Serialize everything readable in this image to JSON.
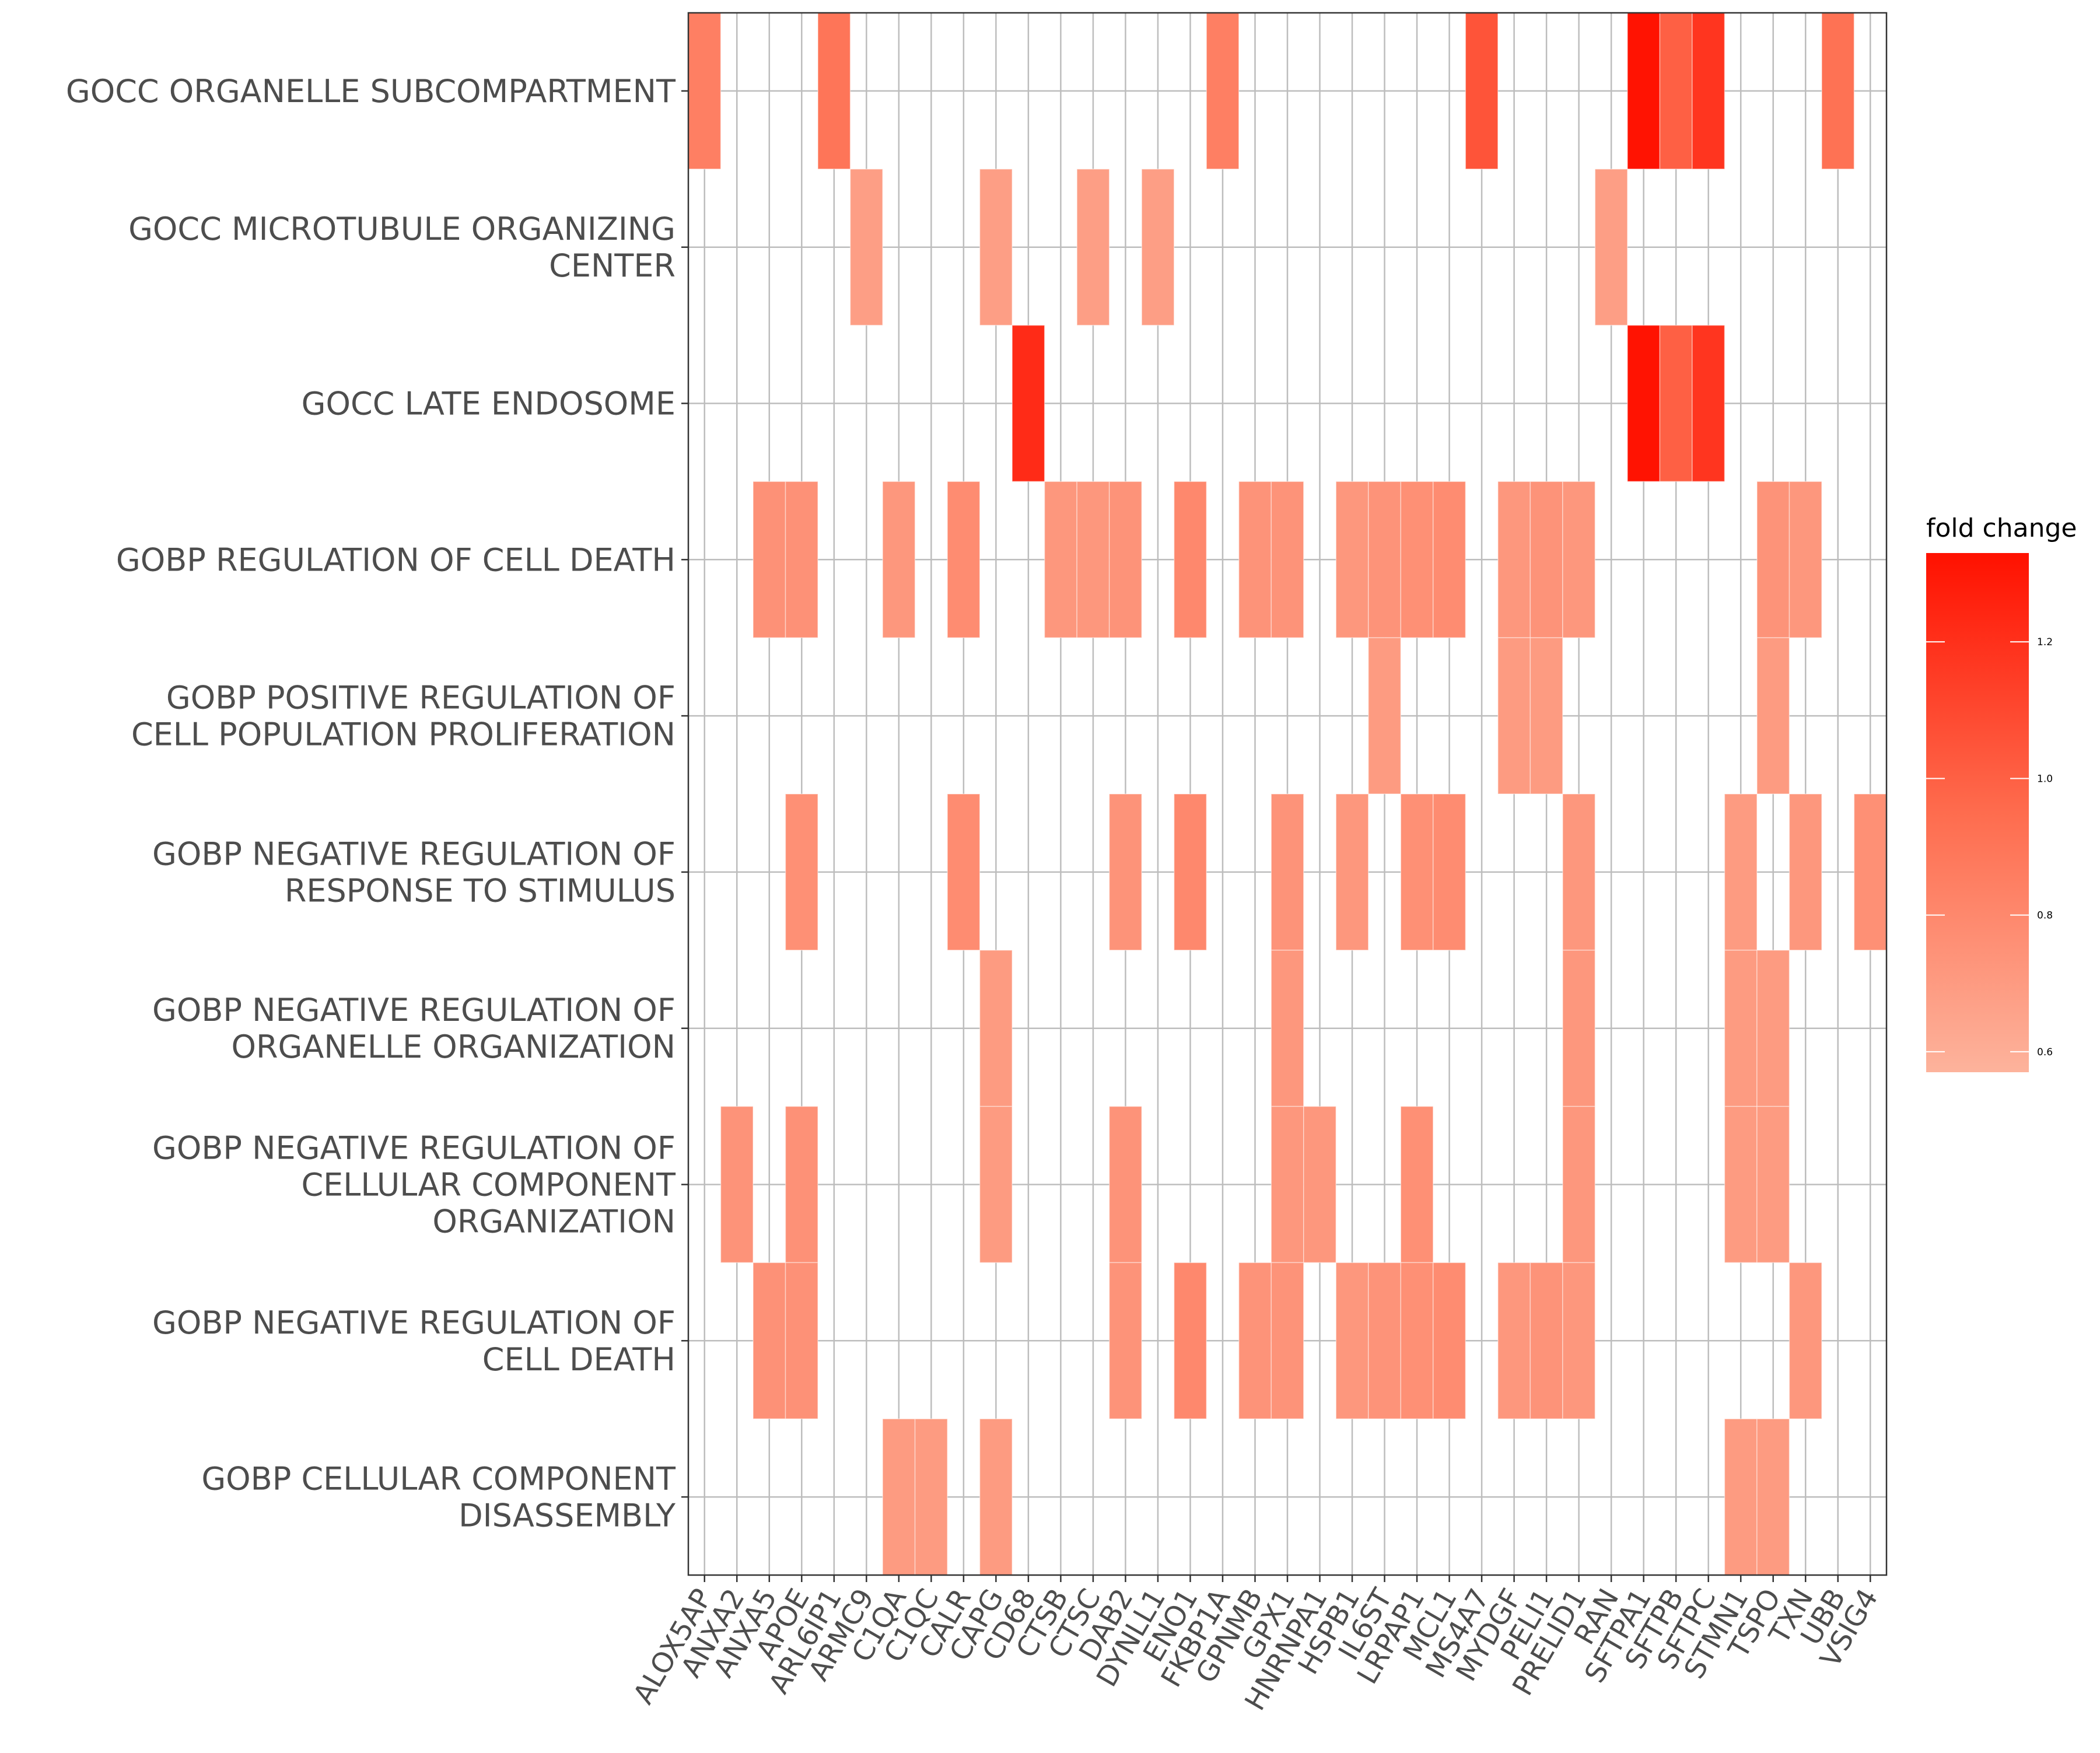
{
  "chart_data": {
    "type": "heatmap",
    "legend": {
      "title": "fold change",
      "ticks": [
        0.6,
        0.8,
        1.0,
        1.2
      ],
      "tick_labels": [
        "0.6",
        "0.8",
        "1.0",
        "1.2"
      ],
      "range": [
        0.57,
        1.33
      ],
      "position": "right"
    },
    "color_scale": {
      "low": "#fdb39c",
      "mid": "#fe6c4e",
      "high": "#ff1100"
    },
    "grid": true,
    "columns": [
      "ALOX5AP",
      "ANXA2",
      "ANXA5",
      "APOE",
      "ARL6IP1",
      "ARMC9",
      "C1QA",
      "C1QC",
      "CALR",
      "CAPG",
      "CD68",
      "CTSB",
      "CTSC",
      "DAB2",
      "DYNLL1",
      "ENO1",
      "FKBP1A",
      "GPNMB",
      "GPX1",
      "HNRNPA1",
      "HSPB1",
      "IL6ST",
      "LRPAP1",
      "MCL1",
      "MS4A7",
      "MYDGF",
      "PELI1",
      "PRELID1",
      "RAN",
      "SFTPA1",
      "SFTPB",
      "SFTPC",
      "STMN1",
      "TSPO",
      "TXN",
      "UBB",
      "VSIG4"
    ],
    "rows": [
      {
        "label": [
          "GOCC ORGANELLE SUBCOMPARTMENT"
        ],
        "cells": {
          "ALOX5AP": 0.85,
          "ARL6IP1": 0.9,
          "FKBP1A": 0.85,
          "MS4A7": 1.05,
          "SFTPA1": 1.32,
          "SFTPB": 1.0,
          "SFTPC": 1.18,
          "UBB": 0.92
        }
      },
      {
        "label": [
          "GOCC MICROTUBULE ORGANIZING",
          "CENTER"
        ],
        "cells": {
          "ARMC9": 0.68,
          "CAPG": 0.68,
          "CTSC": 0.68,
          "DYNLL1": 0.68,
          "RAN": 0.68
        }
      },
      {
        "label": [
          "GOCC LATE ENDOSOME"
        ],
        "cells": {
          "CD68": 1.22,
          "SFTPA1": 1.32,
          "SFTPB": 1.0,
          "SFTPC": 1.18
        }
      },
      {
        "label": [
          "GOBP REGULATION OF CELL DEATH"
        ],
        "cells": {
          "ANXA5": 0.75,
          "APOE": 0.75,
          "C1QA": 0.72,
          "CALR": 0.78,
          "CTSB": 0.72,
          "CTSC": 0.72,
          "DAB2": 0.74,
          "ENO1": 0.8,
          "GPNMB": 0.74,
          "GPX1": 0.74,
          "HSPB1": 0.72,
          "IL6ST": 0.74,
          "LRPAP1": 0.76,
          "MCL1": 0.78,
          "MYDGF": 0.72,
          "PELI1": 0.74,
          "PRELID1": 0.72,
          "TSPO": 0.74,
          "TXN": 0.72
        }
      },
      {
        "label": [
          "GOBP POSITIVE REGULATION OF",
          "CELL POPULATION PROLIFERATION"
        ],
        "cells": {
          "IL6ST": 0.7,
          "MYDGF": 0.7,
          "PELI1": 0.7,
          "TSPO": 0.7
        }
      },
      {
        "label": [
          "GOBP NEGATIVE REGULATION OF",
          "RESPONSE TO STIMULUS"
        ],
        "cells": {
          "APOE": 0.76,
          "CALR": 0.78,
          "DAB2": 0.74,
          "ENO1": 0.8,
          "GPX1": 0.74,
          "HSPB1": 0.72,
          "LRPAP1": 0.76,
          "MCL1": 0.78,
          "PRELID1": 0.72,
          "STMN1": 0.7,
          "TXN": 0.72,
          "VSIG4": 0.76
        }
      },
      {
        "label": [
          "GOBP NEGATIVE REGULATION OF",
          "ORGANELLE ORGANIZATION"
        ],
        "cells": {
          "CAPG": 0.7,
          "GPX1": 0.72,
          "PRELID1": 0.72,
          "STMN1": 0.7,
          "TSPO": 0.7
        }
      },
      {
        "label": [
          "GOBP NEGATIVE REGULATION OF",
          "CELLULAR COMPONENT",
          "ORGANIZATION"
        ],
        "cells": {
          "ANXA2": 0.74,
          "APOE": 0.75,
          "CAPG": 0.7,
          "DAB2": 0.74,
          "GPX1": 0.72,
          "HNRNPA1": 0.72,
          "LRPAP1": 0.76,
          "PRELID1": 0.72,
          "STMN1": 0.7,
          "TSPO": 0.7
        }
      },
      {
        "label": [
          "GOBP NEGATIVE REGULATION OF",
          "CELL DEATH"
        ],
        "cells": {
          "ANXA5": 0.75,
          "APOE": 0.75,
          "DAB2": 0.74,
          "ENO1": 0.8,
          "GPNMB": 0.74,
          "GPX1": 0.74,
          "HSPB1": 0.72,
          "IL6ST": 0.74,
          "LRPAP1": 0.76,
          "MCL1": 0.78,
          "MYDGF": 0.72,
          "PELI1": 0.74,
          "PRELID1": 0.72,
          "TXN": 0.72
        }
      },
      {
        "label": [
          "GOBP CELLULAR COMPONENT",
          "DISASSEMBLY"
        ],
        "cells": {
          "C1QA": 0.7,
          "C1QC": 0.7,
          "CAPG": 0.7,
          "STMN1": 0.7,
          "TSPO": 0.7
        }
      }
    ]
  }
}
